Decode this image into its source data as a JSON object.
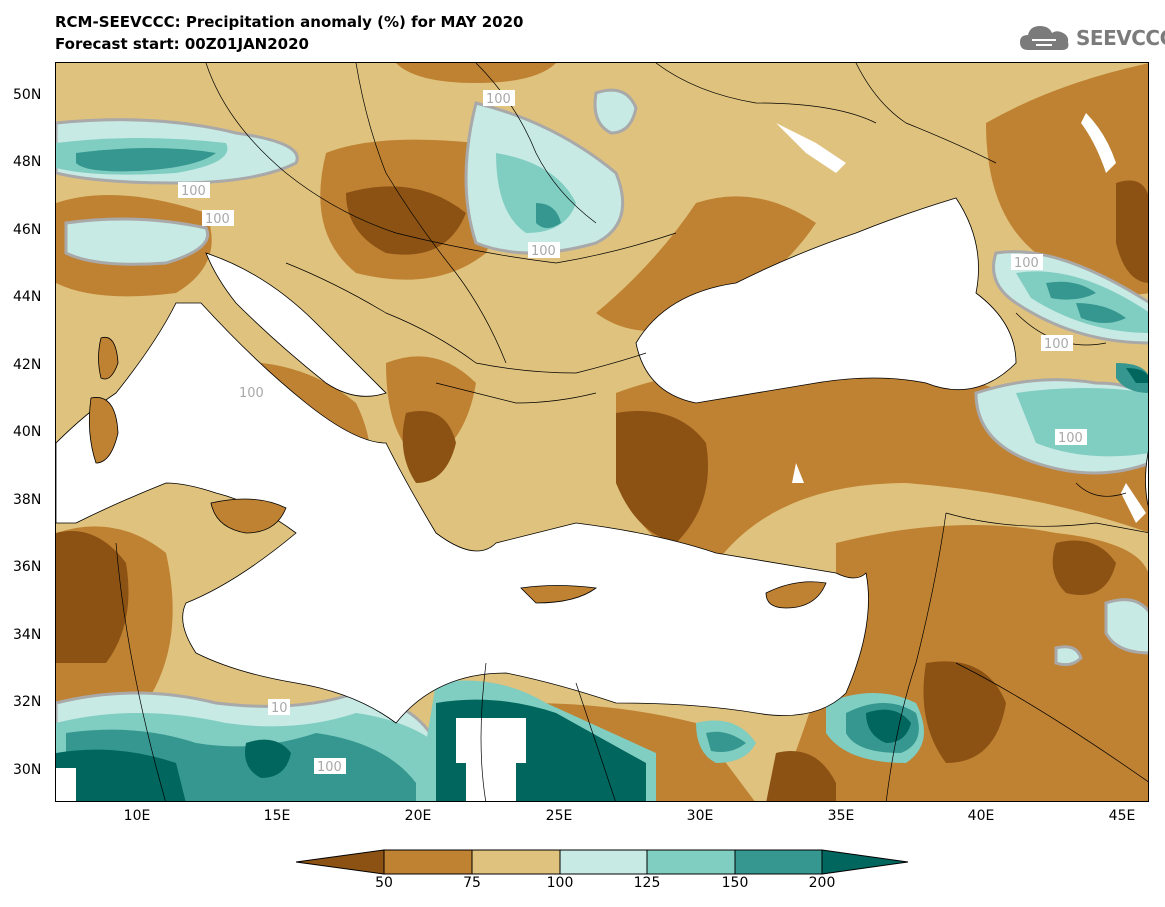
{
  "title": {
    "line1": "RCM-SEEVCCC: Precipitation anomaly (%) for MAY 2020",
    "line2": "Forecast start: 00Z01JAN2020"
  },
  "logo": {
    "text": "SEEVCCC",
    "icon": "cloud-logo-icon"
  },
  "axes": {
    "y_ticks": [
      "50N",
      "48N",
      "46N",
      "44N",
      "42N",
      "40N",
      "38N",
      "36N",
      "34N",
      "32N",
      "30N"
    ],
    "x_ticks": [
      "10E",
      "15E",
      "20E",
      "25E",
      "30E",
      "35E",
      "40E",
      "45E"
    ]
  },
  "contour_labels": [
    "100",
    "100",
    "100",
    "100",
    "100",
    "100",
    "100",
    "100",
    "10",
    "100"
  ],
  "colorbar": {
    "labels": [
      "50",
      "75",
      "100",
      "125",
      "150",
      "200"
    ],
    "colors": [
      "#8c5214",
      "#bf8132",
      "#dfc27d",
      "#c7eae5",
      "#80cdc1",
      "#35978f",
      "#01665e"
    ]
  },
  "colors": {
    "land_default": "#dfc27d",
    "very_dry": "#8c5214",
    "dry": "#bf8132",
    "near_normal": "#dfc27d",
    "wet": "#c7eae5",
    "wetter": "#80cdc1",
    "very_wet": "#35978f",
    "extreme_wet": "#01665e",
    "sea": "#ffffff",
    "contour": "#a9a9a9"
  }
}
